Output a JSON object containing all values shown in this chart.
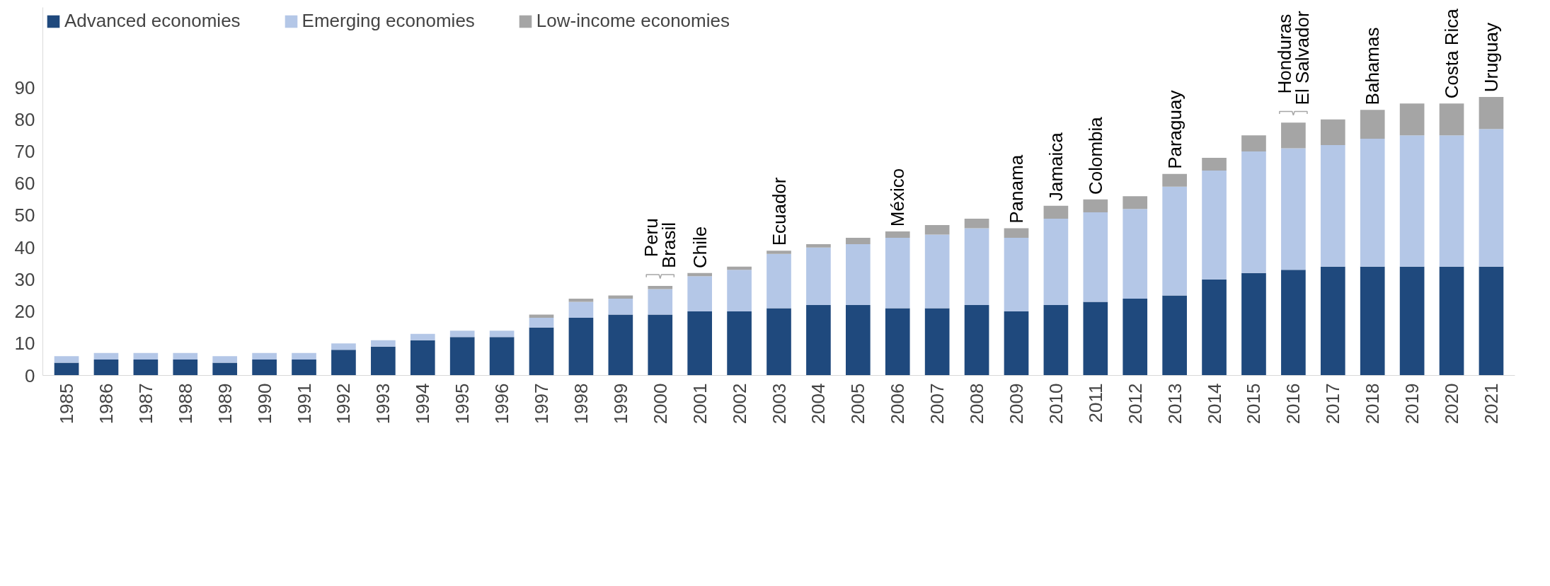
{
  "chart_data": {
    "type": "bar",
    "stacked": true,
    "categories": [
      "1985",
      "1986",
      "1987",
      "1988",
      "1989",
      "1990",
      "1991",
      "1992",
      "1993",
      "1994",
      "1995",
      "1996",
      "1997",
      "1998",
      "1999",
      "2000",
      "2001",
      "2002",
      "2003",
      "2004",
      "2005",
      "2006",
      "2007",
      "2008",
      "2009",
      "2010",
      "2011",
      "2012",
      "2013",
      "2014",
      "2015",
      "2016",
      "2017",
      "2018",
      "2019",
      "2020",
      "2021"
    ],
    "series": [
      {
        "name": "Advanced economies",
        "color": "#1f497d",
        "values": [
          4,
          5,
          5,
          5,
          4,
          5,
          5,
          8,
          9,
          11,
          12,
          12,
          15,
          18,
          19,
          19,
          20,
          20,
          21,
          22,
          22,
          21,
          21,
          22,
          20,
          22,
          23,
          24,
          25,
          30,
          32,
          33,
          34,
          34,
          34,
          34,
          34
        ]
      },
      {
        "name": "Emerging economies",
        "color": "#b4c7e7",
        "values": [
          2,
          2,
          2,
          2,
          2,
          2,
          2,
          2,
          2,
          2,
          2,
          2,
          3,
          5,
          5,
          8,
          11,
          13,
          17,
          18,
          19,
          22,
          23,
          24,
          23,
          27,
          28,
          28,
          34,
          34,
          38,
          38,
          38,
          40,
          41,
          41,
          43
        ]
      },
      {
        "name": "Low-income economies",
        "color": "#a5a5a5",
        "values": [
          0,
          0,
          0,
          0,
          0,
          0,
          0,
          0,
          0,
          0,
          0,
          0,
          1,
          1,
          1,
          1,
          1,
          1,
          1,
          1,
          2,
          2,
          3,
          3,
          3,
          4,
          4,
          4,
          4,
          4,
          5,
          8,
          8,
          9,
          10,
          10,
          10
        ]
      }
    ],
    "ylim": [
      0,
      115
    ],
    "yticks": [
      0,
      10,
      20,
      30,
      40,
      50,
      60,
      70,
      80,
      90
    ],
    "grid": false,
    "legend": "top left",
    "annotations": [
      {
        "text": "Peru",
        "x": "2000",
        "y": 28
      },
      {
        "text": "Brasil",
        "x": "2000",
        "y": 28
      },
      {
        "text": "Chile",
        "x": "2001",
        "y": 32
      },
      {
        "text": "Ecuador",
        "x": "2003",
        "y": 39
      },
      {
        "text": "México",
        "x": "2006",
        "y": 45
      },
      {
        "text": "Panama",
        "x": "2009",
        "y": 46
      },
      {
        "text": "Jamaica",
        "x": "2010",
        "y": 53
      },
      {
        "text": "Colombia",
        "x": "2011",
        "y": 55
      },
      {
        "text": "Paraguay",
        "x": "2013",
        "y": 63
      },
      {
        "text": "Honduras",
        "x": "2016",
        "y": 79
      },
      {
        "text": "El Salvador",
        "x": "2016",
        "y": 79
      },
      {
        "text": "Bahamas",
        "x": "2018",
        "y": 83
      },
      {
        "text": "Costa Rica",
        "x": "2020",
        "y": 85
      },
      {
        "text": "Uruguay",
        "x": "2021",
        "y": 87
      }
    ]
  }
}
